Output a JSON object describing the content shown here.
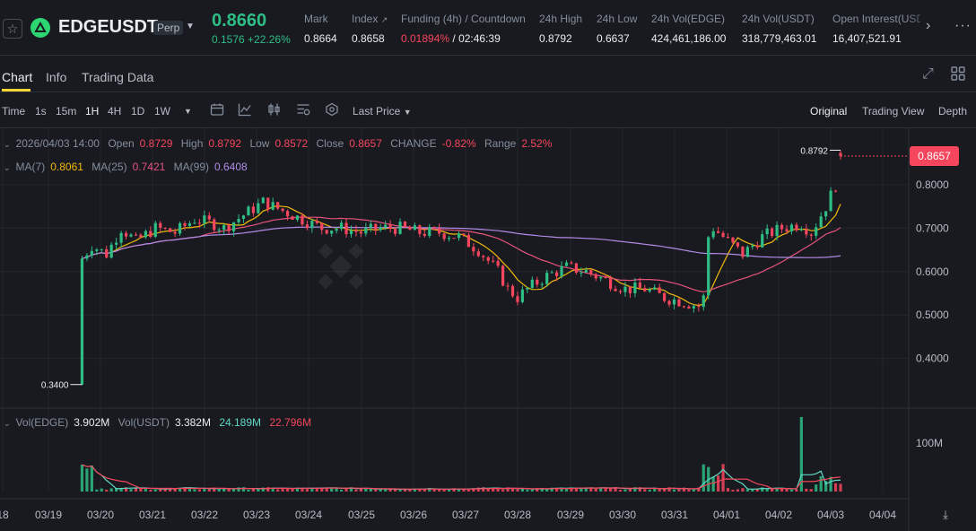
{
  "header": {
    "symbol": "EDGEUSDT",
    "contract_type": "Perp",
    "last_price": "0.8660",
    "change_abs": "0.1576",
    "change_pct": "+22.26%",
    "stats": [
      {
        "label": "Mark",
        "value": "0.8664"
      },
      {
        "label": "Index",
        "value": "0.8658"
      },
      {
        "label": "Funding (4h) / Countdown",
        "rate": "0.01894%",
        "countdown": "02:46:39"
      },
      {
        "label": "24h High",
        "value": "0.8792"
      },
      {
        "label": "24h Low",
        "value": "0.6637"
      },
      {
        "label": "24h Vol(EDGE)",
        "value": "424,461,186.00"
      },
      {
        "label": "24h Vol(USDT)",
        "value": "318,779,463.01"
      },
      {
        "label": "Open Interest(USDT)",
        "value": "16,407,521.91"
      }
    ]
  },
  "tabs": [
    "Chart",
    "Info",
    "Trading Data"
  ],
  "toolbar": {
    "intervals": [
      "Time",
      "1s",
      "15m",
      "1H",
      "4H",
      "1D",
      "1W"
    ],
    "active_interval": "1H",
    "price_type": "Last Price",
    "views": [
      "Original",
      "Trading View",
      "Depth"
    ],
    "active_view": "Original"
  },
  "legend": {
    "date": "2026/04/03 14:00",
    "open_label": "Open",
    "open": "0.8729",
    "high_label": "High",
    "high": "0.8792",
    "low_label": "Low",
    "low": "0.8572",
    "close_label": "Close",
    "close": "0.8657",
    "change_label": "CHANGE",
    "change": "-0.82%",
    "range_label": "Range",
    "range": "2.52%",
    "ma7_label": "MA(7)",
    "ma7": "0.8061",
    "ma25_label": "MA(25)",
    "ma25": "0.7421",
    "ma99_label": "MA(99)",
    "ma99": "0.6408",
    "vol_edge_label": "Vol(EDGE)",
    "vol_edge": "3.902M",
    "vol_usdt_label": "Vol(USDT)",
    "vol_usdt": "3.382M",
    "vol_ma1": "24.189M",
    "vol_ma2": "22.796M"
  },
  "chart_data": {
    "type": "candlestick",
    "interval": "1H",
    "x_ticks": [
      "18",
      "03/19",
      "03/20",
      "03/21",
      "03/22",
      "03/23",
      "03/24",
      "03/25",
      "03/26",
      "03/27",
      "03/28",
      "03/29",
      "03/30",
      "03/31",
      "04/01",
      "04/02",
      "04/03",
      "04/04"
    ],
    "y_ticks": [
      "0.8000",
      "0.7000",
      "0.6000",
      "0.5000",
      "0.4000"
    ],
    "volume_ticks": [
      "100M"
    ],
    "current_price_tag": "0.8657",
    "marked_high": "0.8792",
    "marked_low": "0.3400",
    "ylim": [
      0.31,
      0.92
    ],
    "close_path": [
      {
        "t": 0,
        "p": 0.34
      },
      {
        "t": 1,
        "p": 0.63
      },
      {
        "t": 3,
        "p": 0.66
      },
      {
        "t": 6,
        "p": 0.64
      },
      {
        "t": 9,
        "p": 0.7
      },
      {
        "t": 12,
        "p": 0.67
      },
      {
        "t": 16,
        "p": 0.7
      },
      {
        "t": 20,
        "p": 0.69
      },
      {
        "t": 24,
        "p": 0.72
      },
      {
        "t": 28,
        "p": 0.71
      },
      {
        "t": 30,
        "p": 0.7
      },
      {
        "t": 34,
        "p": 0.73
      },
      {
        "t": 38,
        "p": 0.76
      },
      {
        "t": 42,
        "p": 0.74
      },
      {
        "t": 46,
        "p": 0.72
      },
      {
        "t": 50,
        "p": 0.7
      },
      {
        "t": 54,
        "p": 0.7
      },
      {
        "t": 58,
        "p": 0.69
      },
      {
        "t": 62,
        "p": 0.7
      },
      {
        "t": 66,
        "p": 0.7
      },
      {
        "t": 70,
        "p": 0.69
      },
      {
        "t": 74,
        "p": 0.69
      },
      {
        "t": 78,
        "p": 0.68
      },
      {
        "t": 82,
        "p": 0.65
      },
      {
        "t": 86,
        "p": 0.6
      },
      {
        "t": 88,
        "p": 0.56
      },
      {
        "t": 90,
        "p": 0.54
      },
      {
        "t": 92,
        "p": 0.56
      },
      {
        "t": 96,
        "p": 0.59
      },
      {
        "t": 100,
        "p": 0.61
      },
      {
        "t": 104,
        "p": 0.6
      },
      {
        "t": 108,
        "p": 0.58
      },
      {
        "t": 112,
        "p": 0.56
      },
      {
        "t": 116,
        "p": 0.56
      },
      {
        "t": 120,
        "p": 0.54
      },
      {
        "t": 124,
        "p": 0.53
      },
      {
        "t": 127,
        "p": 0.52
      },
      {
        "t": 128,
        "p": 0.54
      },
      {
        "t": 129,
        "p": 0.68
      },
      {
        "t": 130,
        "p": 0.7
      },
      {
        "t": 133,
        "p": 0.67
      },
      {
        "t": 136,
        "p": 0.64
      },
      {
        "t": 140,
        "p": 0.68
      },
      {
        "t": 144,
        "p": 0.7
      },
      {
        "t": 148,
        "p": 0.71
      },
      {
        "t": 150,
        "p": 0.69
      },
      {
        "t": 153,
        "p": 0.75
      },
      {
        "t": 155,
        "p": 0.8
      },
      {
        "t": 156,
        "p": 0.8657
      }
    ],
    "ma7_last": 0.8061,
    "ma25_last": 0.7421,
    "ma99_last": 0.6408
  }
}
